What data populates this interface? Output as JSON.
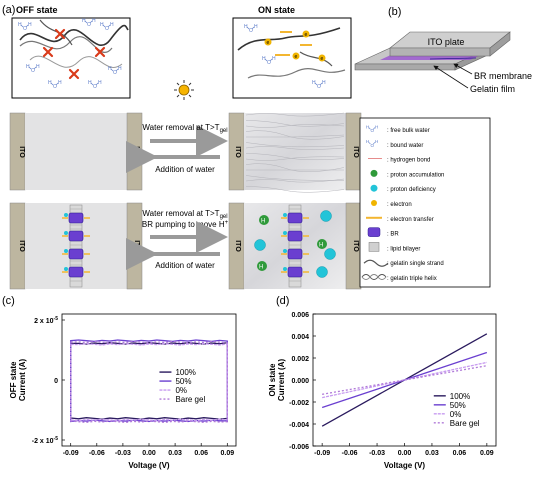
{
  "panel_labels": {
    "a": "(a)",
    "b": "(b)",
    "c": "(c)",
    "d": "(d)"
  },
  "panel_a": {
    "off_state": "OFF state",
    "on_state": "ON state",
    "electrode": "ITO",
    "row1_forward": "Water removal at T>T",
    "subscript_gel": "gel",
    "row1_back": "Addition of water",
    "row2_forward_line1": "Water removal at T>T",
    "row2_forward_line2": "BR pumping to move H",
    "plus_sign": "+",
    "row2_back": "Addition of water",
    "h_plus": "H",
    "electron": "e",
    "water_h": "H",
    "water_o": "O"
  },
  "panel_b": {
    "ito_plate": "ITO plate",
    "br_membrane": "BR membrane",
    "gelatin_film": "Gelatin film"
  },
  "legend": [
    {
      "key": "free-bulk-water",
      "label": ": free bulk water"
    },
    {
      "key": "bound-water",
      "label": ": bound water"
    },
    {
      "key": "hydrogen-bond",
      "label": ": hydrogen bond"
    },
    {
      "key": "proton-accumulation",
      "label": ": proton accumulation"
    },
    {
      "key": "proton-deficiency",
      "label": ": proton deficiency"
    },
    {
      "key": "electron",
      "label": ": electron"
    },
    {
      "key": "electron-transfer",
      "label": ": electron transfer"
    },
    {
      "key": "br",
      "label": ": BR"
    },
    {
      "key": "lipid-bilayer",
      "label": ": lipid bilayer"
    },
    {
      "key": "gelatin-single-strand",
      "label": ": gelatin single strand"
    },
    {
      "key": "gelatin-triple-helix",
      "label": ": gelatin triple helix"
    }
  ],
  "colors": {
    "s100": "#2a1a5e",
    "s50": "#6a3fd0",
    "s0": "#c79bf0",
    "bare": "#b07ad8",
    "electrode": "#bdb6a0",
    "proton_acc": "#2f9a3a",
    "proton_def": "#22c4d8",
    "electron": "#f0b400"
  },
  "chart_data": [
    {
      "type": "line",
      "panel": "(c)",
      "xlabel": "Voltage (V)",
      "ylabel_line1": "OFF state",
      "ylabel_line2": "Current (A)",
      "xticks": [
        "-0.09",
        "-0.06",
        "-0.03",
        "0.00",
        "0.03",
        "0.06",
        "0.09"
      ],
      "yticks": [
        {
          "mant": "2 x 10",
          "exp": "-5",
          "value": 2e-05
        },
        {
          "mant": "0",
          "exp": "",
          "value": 0
        },
        {
          "mant": "-2 x 10",
          "exp": "-5",
          "value": -2e-05
        }
      ],
      "xlim": [
        -0.1,
        0.1
      ],
      "ylim": [
        -2.2e-05,
        2.2e-05
      ],
      "legend": [
        "100%",
        "50%",
        "0%",
        "Bare gel"
      ],
      "series": [
        {
          "name": "100%",
          "color": "#2a1a5e",
          "upper": 1.22e-05,
          "lower": -1.28e-05
        },
        {
          "name": "50%",
          "color": "#6a3fd0",
          "upper": 1.31e-05,
          "lower": -1.36e-05
        },
        {
          "name": "0%",
          "color": "#c79bf0",
          "upper": 1.19e-05,
          "lower": -1.33e-05
        },
        {
          "name": "Bare gel",
          "color": "#b07ad8",
          "upper": 1.26e-05,
          "lower": -1.39e-05
        }
      ]
    },
    {
      "type": "line",
      "panel": "(d)",
      "xlabel": "Voltage (V)",
      "ylabel_line1": "ON state",
      "ylabel_line2": "Current (A)",
      "xticks": [
        "-0.09",
        "-0.06",
        "-0.03",
        "0.00",
        "0.03",
        "0.06",
        "0.09"
      ],
      "yticks": [
        "0.006",
        "0.004",
        "0.002",
        "0.000",
        "-0.002",
        "-0.004",
        "-0.006"
      ],
      "xlim": [
        -0.1,
        0.1
      ],
      "ylim": [
        -0.006,
        0.006
      ],
      "legend": [
        "100%",
        "50%",
        "0%",
        "Bare gel"
      ],
      "series": [
        {
          "name": "100%",
          "color": "#2a1a5e",
          "x": [
            -0.09,
            0.09
          ],
          "y": [
            -0.0042,
            0.0042
          ]
        },
        {
          "name": "50%",
          "color": "#6a3fd0",
          "x": [
            -0.09,
            0.09
          ],
          "y": [
            -0.0025,
            0.0025
          ]
        },
        {
          "name": "0%",
          "color": "#c79bf0",
          "x": [
            -0.09,
            0.09
          ],
          "y": [
            -0.0016,
            0.0016
          ]
        },
        {
          "name": "Bare gel",
          "color": "#b07ad8",
          "x": [
            -0.09,
            0.09
          ],
          "y": [
            -0.0013,
            0.0013
          ]
        }
      ]
    }
  ]
}
